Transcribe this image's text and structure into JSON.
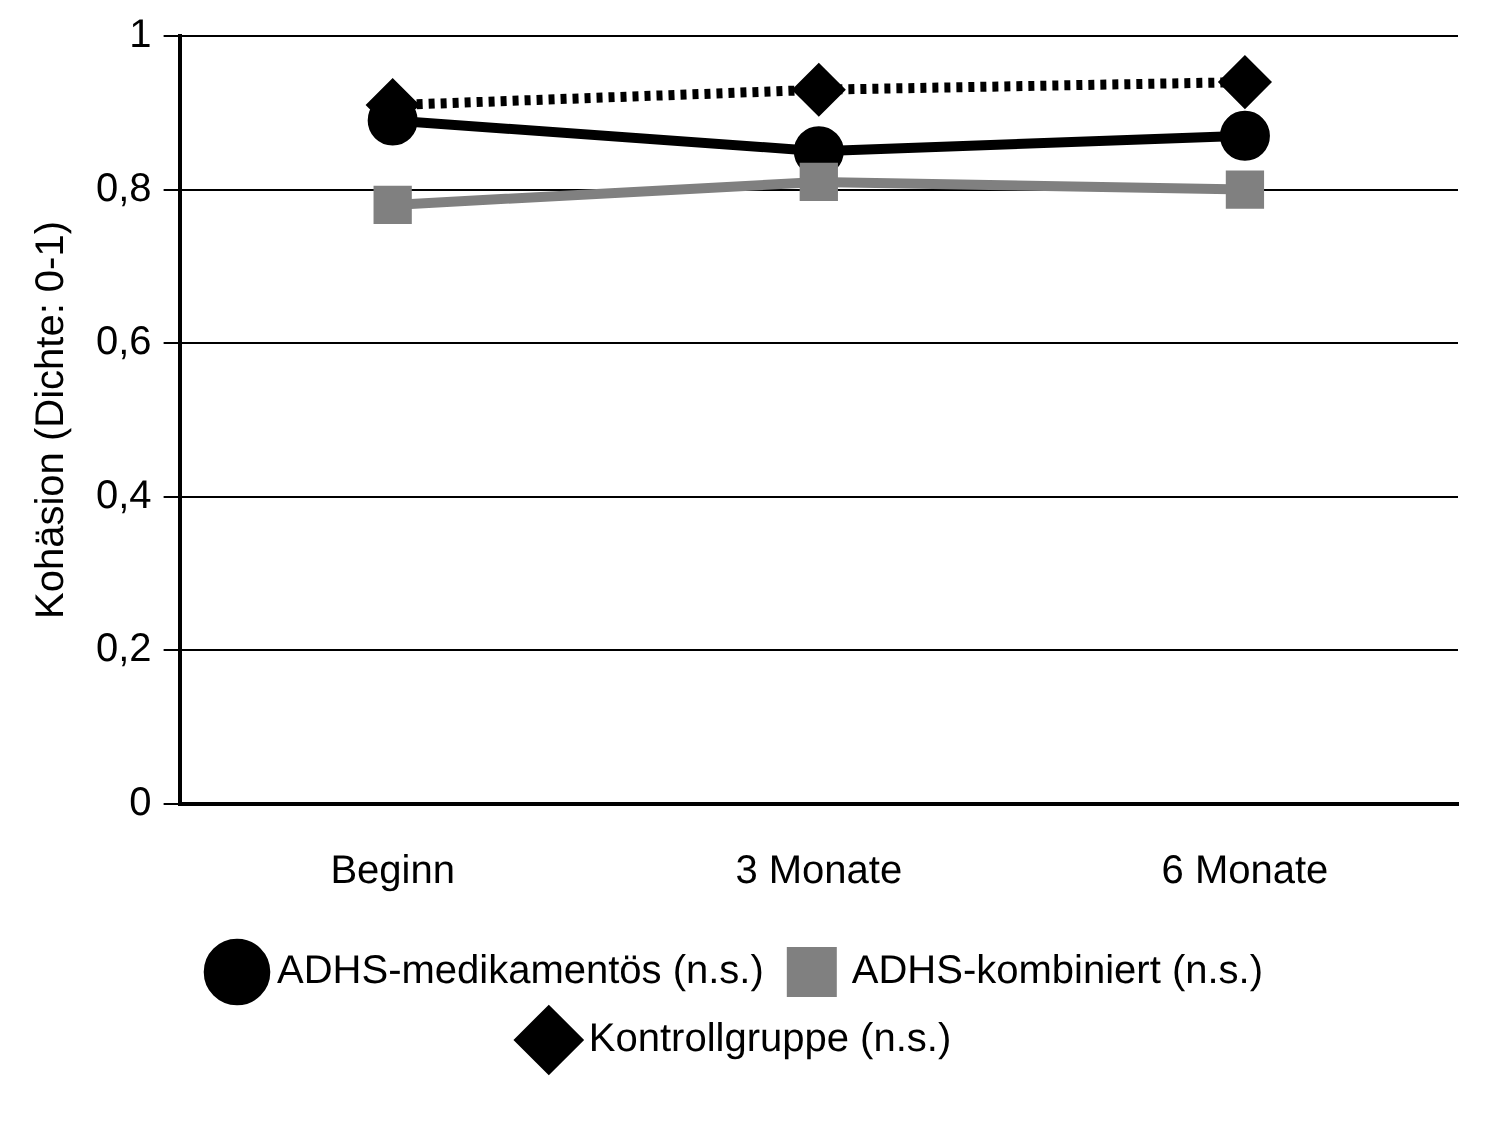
{
  "chart_data": {
    "type": "line",
    "ylabel": "Kohäsion (Dichte: 0-1)",
    "categories": [
      "Beginn",
      "3 Monate",
      "6 Monate"
    ],
    "series": [
      {
        "name": "ADHS-medikamentös (n.s.)",
        "color": "#000000",
        "marker": "circle",
        "line_style": "solid",
        "values": [
          0.89,
          0.85,
          0.87
        ]
      },
      {
        "name": "ADHS-kombiniert (n.s.)",
        "color": "#808080",
        "marker": "square",
        "line_style": "solid",
        "values": [
          0.78,
          0.81,
          0.8
        ]
      },
      {
        "name": "Kontrollgruppe (n.s.)",
        "color": "#000000",
        "marker": "diamond",
        "line_style": "dotted",
        "values": [
          0.91,
          0.93,
          0.94
        ]
      }
    ],
    "ylim": [
      0,
      1
    ],
    "yticks": [
      {
        "value": 0,
        "label": "0"
      },
      {
        "value": 0.2,
        "label": "0,2"
      },
      {
        "value": 0.4,
        "label": "0,4"
      },
      {
        "value": 0.6,
        "label": "0,6"
      },
      {
        "value": 0.8,
        "label": "0,8"
      },
      {
        "value": 1,
        "label": "1"
      }
    ],
    "grid": "y",
    "legend": "bottom"
  }
}
